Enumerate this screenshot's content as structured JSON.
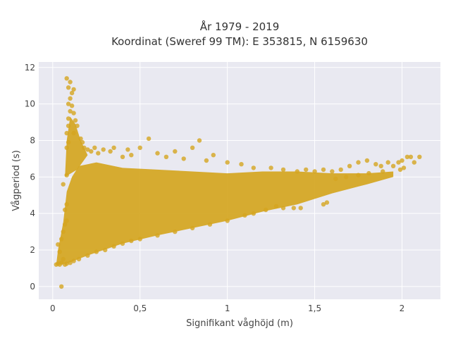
{
  "chart_data": {
    "type": "scatter",
    "title": "År 1979 - 2019",
    "subtitle": "Koordinat (Sweref 99 TM): E 353815, N 6159630",
    "xlabel": "Signifikant våghöjd (m)",
    "ylabel": "Vågperiod (s)",
    "xlim": [
      -0.08,
      2.22
    ],
    "ylim": [
      -0.7,
      12.3
    ],
    "x_ticks": [
      0,
      0.5,
      1,
      1.5,
      2
    ],
    "x_tick_labels": [
      "0",
      "0,5",
      "1",
      "1,5",
      "2"
    ],
    "y_ticks": [
      0,
      2,
      4,
      6,
      8,
      10,
      12
    ],
    "y_tick_labels": [
      "0",
      "2",
      "4",
      "6",
      "8",
      "10",
      "12"
    ],
    "grid": true,
    "background": "#E9E9F1",
    "marker_color": "#D4A520",
    "series": [
      {
        "points": [
          [
            0.05,
            0.0
          ],
          [
            0.02,
            1.2
          ],
          [
            0.03,
            1.25
          ],
          [
            0.04,
            1.2
          ],
          [
            0.05,
            1.3
          ],
          [
            0.06,
            1.5
          ],
          [
            0.04,
            1.9
          ],
          [
            0.03,
            2.3
          ],
          [
            0.05,
            2.6
          ],
          [
            0.06,
            3.0
          ],
          [
            0.07,
            3.4
          ],
          [
            0.08,
            3.6
          ],
          [
            0.07,
            4.2
          ],
          [
            0.08,
            4.5
          ],
          [
            0.06,
            5.6
          ],
          [
            0.08,
            6.1
          ],
          [
            0.08,
            7.6
          ],
          [
            0.09,
            7.9
          ],
          [
            0.08,
            8.4
          ],
          [
            0.09,
            8.8
          ],
          [
            0.09,
            9.2
          ],
          [
            0.1,
            9.6
          ],
          [
            0.09,
            10.0
          ],
          [
            0.1,
            10.3
          ],
          [
            0.11,
            10.6
          ],
          [
            0.09,
            10.9
          ],
          [
            0.1,
            11.2
          ],
          [
            0.08,
            11.4
          ],
          [
            0.12,
            10.8
          ],
          [
            0.11,
            9.9
          ],
          [
            0.12,
            9.5
          ],
          [
            0.13,
            9.1
          ],
          [
            0.14,
            8.8
          ],
          [
            0.12,
            8.4
          ],
          [
            0.16,
            8.1
          ],
          [
            0.17,
            7.9
          ],
          [
            0.18,
            7.6
          ],
          [
            0.2,
            7.5
          ],
          [
            0.22,
            7.4
          ],
          [
            0.24,
            7.6
          ],
          [
            0.26,
            7.3
          ],
          [
            0.29,
            7.5
          ],
          [
            0.33,
            7.4
          ],
          [
            0.35,
            7.6
          ],
          [
            0.4,
            7.1
          ],
          [
            0.43,
            7.5
          ],
          [
            0.45,
            7.2
          ],
          [
            0.5,
            7.6
          ],
          [
            0.55,
            8.1
          ],
          [
            0.6,
            7.3
          ],
          [
            0.65,
            7.1
          ],
          [
            0.7,
            7.4
          ],
          [
            0.75,
            7.0
          ],
          [
            0.8,
            7.6
          ],
          [
            0.84,
            8.0
          ],
          [
            0.88,
            6.9
          ],
          [
            0.92,
            7.2
          ],
          [
            1.0,
            6.8
          ],
          [
            1.08,
            6.7
          ],
          [
            1.15,
            6.5
          ],
          [
            1.25,
            6.5
          ],
          [
            1.32,
            6.4
          ],
          [
            1.4,
            6.3
          ],
          [
            1.45,
            6.4
          ],
          [
            1.5,
            6.3
          ],
          [
            1.55,
            6.4
          ],
          [
            1.6,
            6.3
          ],
          [
            1.65,
            6.4
          ],
          [
            1.7,
            6.6
          ],
          [
            1.75,
            6.8
          ],
          [
            1.8,
            6.9
          ],
          [
            1.85,
            6.7
          ],
          [
            1.88,
            6.6
          ],
          [
            1.92,
            6.8
          ],
          [
            1.95,
            6.6
          ],
          [
            1.98,
            6.8
          ],
          [
            2.0,
            6.9
          ],
          [
            2.03,
            7.1
          ],
          [
            2.05,
            7.1
          ],
          [
            2.07,
            6.8
          ],
          [
            2.1,
            7.1
          ],
          [
            2.01,
            6.5
          ],
          [
            1.99,
            6.4
          ],
          [
            1.89,
            6.3
          ],
          [
            1.81,
            6.2
          ],
          [
            1.75,
            6.1
          ],
          [
            1.68,
            6.0
          ],
          [
            1.62,
            5.9
          ],
          [
            1.55,
            4.5
          ],
          [
            1.57,
            4.6
          ],
          [
            1.42,
            4.3
          ],
          [
            1.38,
            4.3
          ],
          [
            1.32,
            4.3
          ],
          [
            1.28,
            4.4
          ],
          [
            1.22,
            4.2
          ],
          [
            1.15,
            4.0
          ],
          [
            1.1,
            3.9
          ],
          [
            1.0,
            3.6
          ],
          [
            0.9,
            3.4
          ],
          [
            0.8,
            3.2
          ],
          [
            0.7,
            3.0
          ],
          [
            0.6,
            2.8
          ],
          [
            0.5,
            2.6
          ],
          [
            0.45,
            2.5
          ],
          [
            0.4,
            2.35
          ],
          [
            0.35,
            2.2
          ],
          [
            0.3,
            2.0
          ],
          [
            0.25,
            1.9
          ],
          [
            0.2,
            1.7
          ],
          [
            0.15,
            1.5
          ],
          [
            0.12,
            1.4
          ],
          [
            0.1,
            1.3
          ],
          [
            0.08,
            1.25
          ],
          [
            0.07,
            1.2
          ]
        ]
      }
    ]
  }
}
